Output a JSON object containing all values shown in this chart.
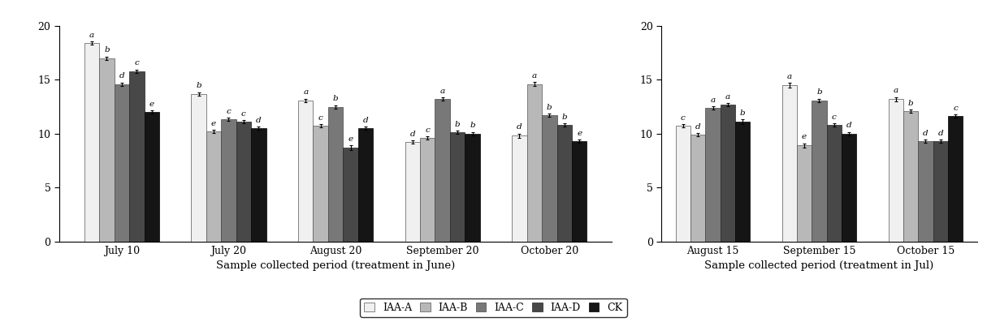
{
  "ax1": {
    "groups": [
      "July 10",
      "July 20",
      "August 20",
      "September 20",
      "October 20"
    ],
    "series": {
      "IAA-A": [
        18.4,
        13.7,
        13.1,
        9.2,
        9.8
      ],
      "IAA-B": [
        17.0,
        10.2,
        10.7,
        9.6,
        14.6
      ],
      "IAA-C": [
        14.6,
        11.3,
        12.5,
        13.2,
        11.7
      ],
      "IAA-D": [
        15.8,
        11.1,
        8.7,
        10.1,
        10.8
      ],
      "CK": [
        12.0,
        10.5,
        10.5,
        10.0,
        9.3
      ]
    },
    "errors": {
      "IAA-A": [
        0.15,
        0.15,
        0.15,
        0.15,
        0.2
      ],
      "IAA-B": [
        0.15,
        0.15,
        0.15,
        0.15,
        0.2
      ],
      "IAA-C": [
        0.15,
        0.15,
        0.15,
        0.15,
        0.15
      ],
      "IAA-D": [
        0.15,
        0.15,
        0.2,
        0.15,
        0.15
      ],
      "CK": [
        0.15,
        0.15,
        0.15,
        0.15,
        0.15
      ]
    },
    "letters": {
      "IAA-A": [
        "a",
        "b",
        "a",
        "d",
        "d"
      ],
      "IAA-B": [
        "b",
        "e",
        "c",
        "c",
        "a"
      ],
      "IAA-C": [
        "d",
        "c",
        "b",
        "a",
        "b"
      ],
      "IAA-D": [
        "c",
        "c",
        "e",
        "b",
        "b"
      ],
      "CK": [
        "e",
        "d",
        "d",
        "b",
        "e"
      ]
    },
    "xlabel": "Sample collected period (treatment in June)",
    "ylim": [
      0,
      20
    ],
    "yticks": [
      0,
      5,
      10,
      15,
      20
    ]
  },
  "ax2": {
    "groups": [
      "August 15",
      "September 15",
      "October 15"
    ],
    "series": {
      "IAA-A": [
        10.7,
        14.5,
        13.2
      ],
      "IAA-B": [
        9.9,
        8.9,
        12.1
      ],
      "IAA-C": [
        12.4,
        13.1,
        9.3
      ],
      "IAA-D": [
        12.7,
        10.8,
        9.3
      ],
      "CK": [
        11.1,
        10.0,
        11.6
      ]
    },
    "errors": {
      "IAA-A": [
        0.15,
        0.2,
        0.2
      ],
      "IAA-B": [
        0.15,
        0.2,
        0.15
      ],
      "IAA-C": [
        0.15,
        0.15,
        0.15
      ],
      "IAA-D": [
        0.15,
        0.15,
        0.15
      ],
      "CK": [
        0.2,
        0.15,
        0.15
      ]
    },
    "letters": {
      "IAA-A": [
        "c",
        "a",
        "a"
      ],
      "IAA-B": [
        "d",
        "e",
        "b"
      ],
      "IAA-C": [
        "a",
        "b",
        "d"
      ],
      "IAA-D": [
        "a",
        "c",
        "d"
      ],
      "CK": [
        "b",
        "d",
        "c"
      ]
    },
    "xlabel": "Sample collected period (treatment in Jul)",
    "ylim": [
      0,
      20
    ],
    "yticks": [
      0,
      5,
      10,
      15,
      20
    ]
  },
  "colors": {
    "IAA-A": "#f0f0f0",
    "IAA-B": "#b8b8b8",
    "IAA-C": "#787878",
    "IAA-D": "#484848",
    "CK": "#151515"
  },
  "edgecolors": {
    "IAA-A": "#555555",
    "IAA-B": "#555555",
    "IAA-C": "#444444",
    "IAA-D": "#222222",
    "CK": "#000000"
  },
  "series_names": [
    "IAA-A",
    "IAA-B",
    "IAA-C",
    "IAA-D",
    "CK"
  ],
  "bar_width": 0.14,
  "figsize": [
    12.15,
    3.97
  ],
  "dpi": 100
}
